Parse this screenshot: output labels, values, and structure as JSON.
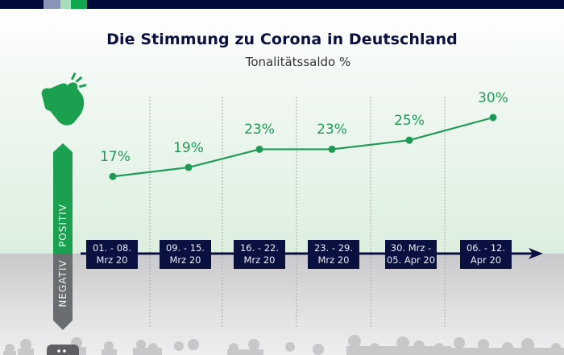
{
  "header": {
    "swatches": [
      "#8a94b8",
      "#a9dcb9",
      "#12a84e"
    ],
    "bar_color": "#020a3a"
  },
  "chart_data": {
    "type": "line",
    "title": "Die Stimmung zu Corona in Deutschland",
    "subtitle": "Tonalitätssaldo %",
    "xlabel": "",
    "ylabel": "Tonalitätssaldo %",
    "categories": [
      [
        "01. - 08.",
        "Mrz 20"
      ],
      [
        "09. - 15.",
        "Mrz 20"
      ],
      [
        "16. - 22.",
        "Mrz 20"
      ],
      [
        "23. - 29.",
        "Mrz 20"
      ],
      [
        "30. Mrz -",
        "05. Apr 20"
      ],
      [
        "06. - 12.",
        "Apr 20"
      ]
    ],
    "series": [
      {
        "name": "Tonalitätssaldo",
        "values": [
          17,
          19,
          23,
          23,
          25,
          30
        ],
        "color": "#1f9a55"
      }
    ],
    "value_labels": [
      "17%",
      "19%",
      "23%",
      "23%",
      "25%",
      "30%"
    ],
    "ylim": [
      -25,
      35
    ],
    "grid": "vertical dashed separators",
    "axis_labels": {
      "positive": "POSITIV",
      "negative": "NEGATIV"
    },
    "colors": {
      "positive": "#1aa04f",
      "negative": "#6b6c70",
      "date_box": "#0a1040",
      "axis": "#0a1040"
    }
  }
}
